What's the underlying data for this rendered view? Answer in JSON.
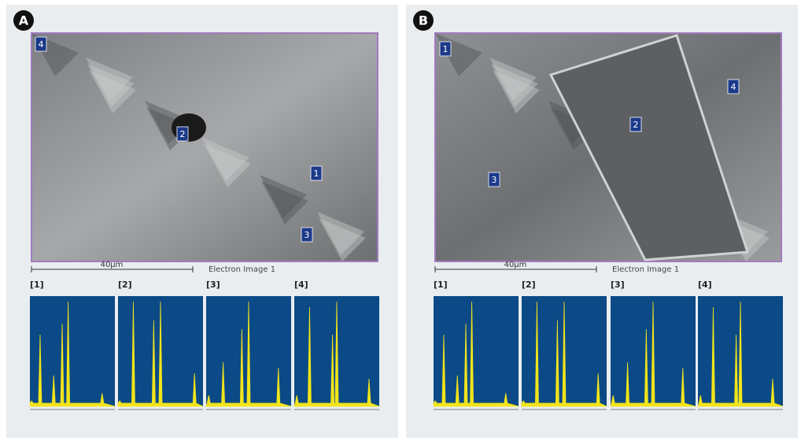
{
  "panels": [
    {
      "label": "A",
      "scale_bar": "40µm",
      "image_caption": "Electron Image 1",
      "spots": [
        "4",
        "2",
        "1",
        "3"
      ],
      "spectra": [
        "[1]",
        "[2]",
        "[3]",
        "[4]"
      ]
    },
    {
      "label": "B",
      "scale_bar": "40µm",
      "image_caption": "Electron Image 1",
      "spots": [
        "1",
        "4",
        "2",
        "3"
      ],
      "spectra": [
        "[1]",
        "[2]",
        "[3]",
        "[4]"
      ]
    }
  ]
}
